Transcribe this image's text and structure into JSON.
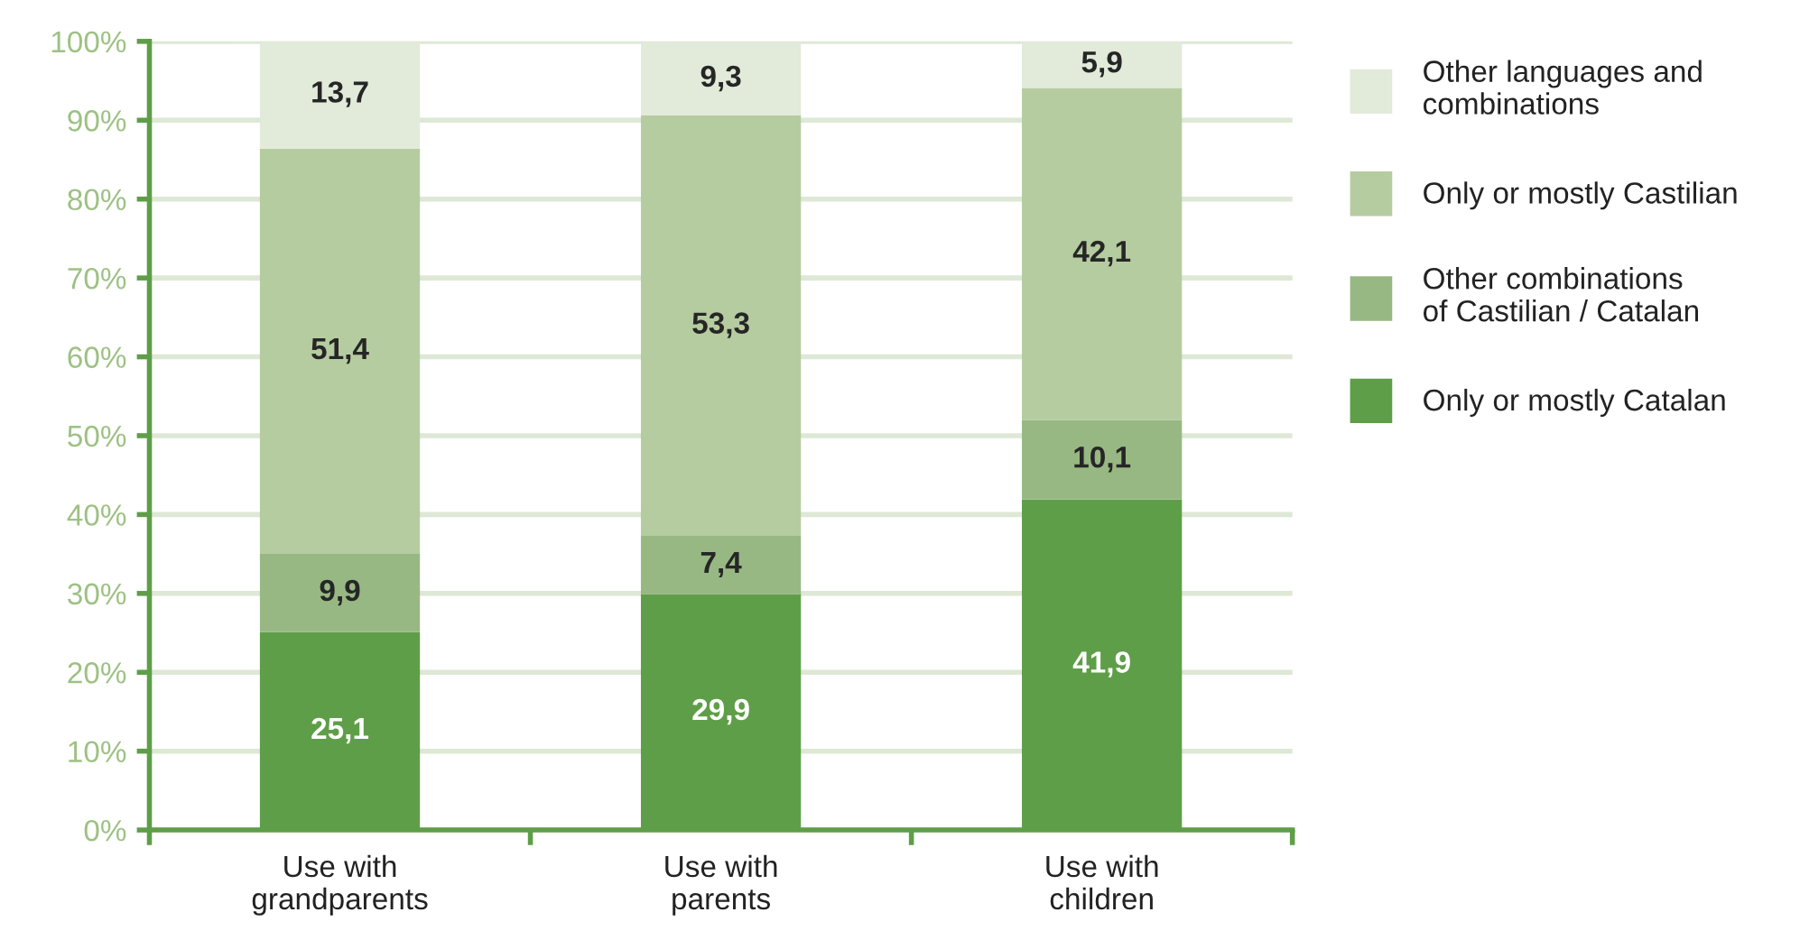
{
  "chart_data": {
    "type": "bar",
    "stacked": true,
    "categories": [
      "Use with\ngrandparents",
      "Use with\nparents",
      "Use with\nchildren"
    ],
    "series": [
      {
        "name": "Only or mostly Catalan",
        "color": "#5f9e48",
        "values": [
          25.1,
          29.9,
          41.9
        ],
        "value_labels": [
          "25,1",
          "29,9",
          "41,9"
        ]
      },
      {
        "name": "Other combinations\nof Castilian / Catalan",
        "color": "#97b883",
        "values": [
          9.9,
          7.4,
          10.1
        ],
        "value_labels": [
          "9,9",
          "7,4",
          "10,1"
        ]
      },
      {
        "name": "Only or mostly Castilian",
        "color": "#b5cca0",
        "values": [
          51.4,
          53.3,
          42.1
        ],
        "value_labels": [
          "51,4",
          "53,3",
          "42,1"
        ]
      },
      {
        "name": "Other languages and\ncombinations",
        "color": "#e2ebda",
        "values": [
          13.7,
          9.3,
          5.9
        ],
        "value_labels": [
          "13,7",
          "9,3",
          "5,9"
        ]
      }
    ],
    "ylim": [
      0,
      100
    ],
    "yticks": [
      {
        "value": 0,
        "label": "0%"
      },
      {
        "value": 10,
        "label": "10%"
      },
      {
        "value": 20,
        "label": "20%"
      },
      {
        "value": 30,
        "label": "30%"
      },
      {
        "value": 40,
        "label": "40%"
      },
      {
        "value": 50,
        "label": "50%"
      },
      {
        "value": 60,
        "label": "60%"
      },
      {
        "value": 70,
        "label": "70%"
      },
      {
        "value": 80,
        "label": "80%"
      },
      {
        "value": 90,
        "label": "90%"
      },
      {
        "value": 100,
        "label": "100%"
      }
    ],
    "grid": "y",
    "legend": "right"
  }
}
